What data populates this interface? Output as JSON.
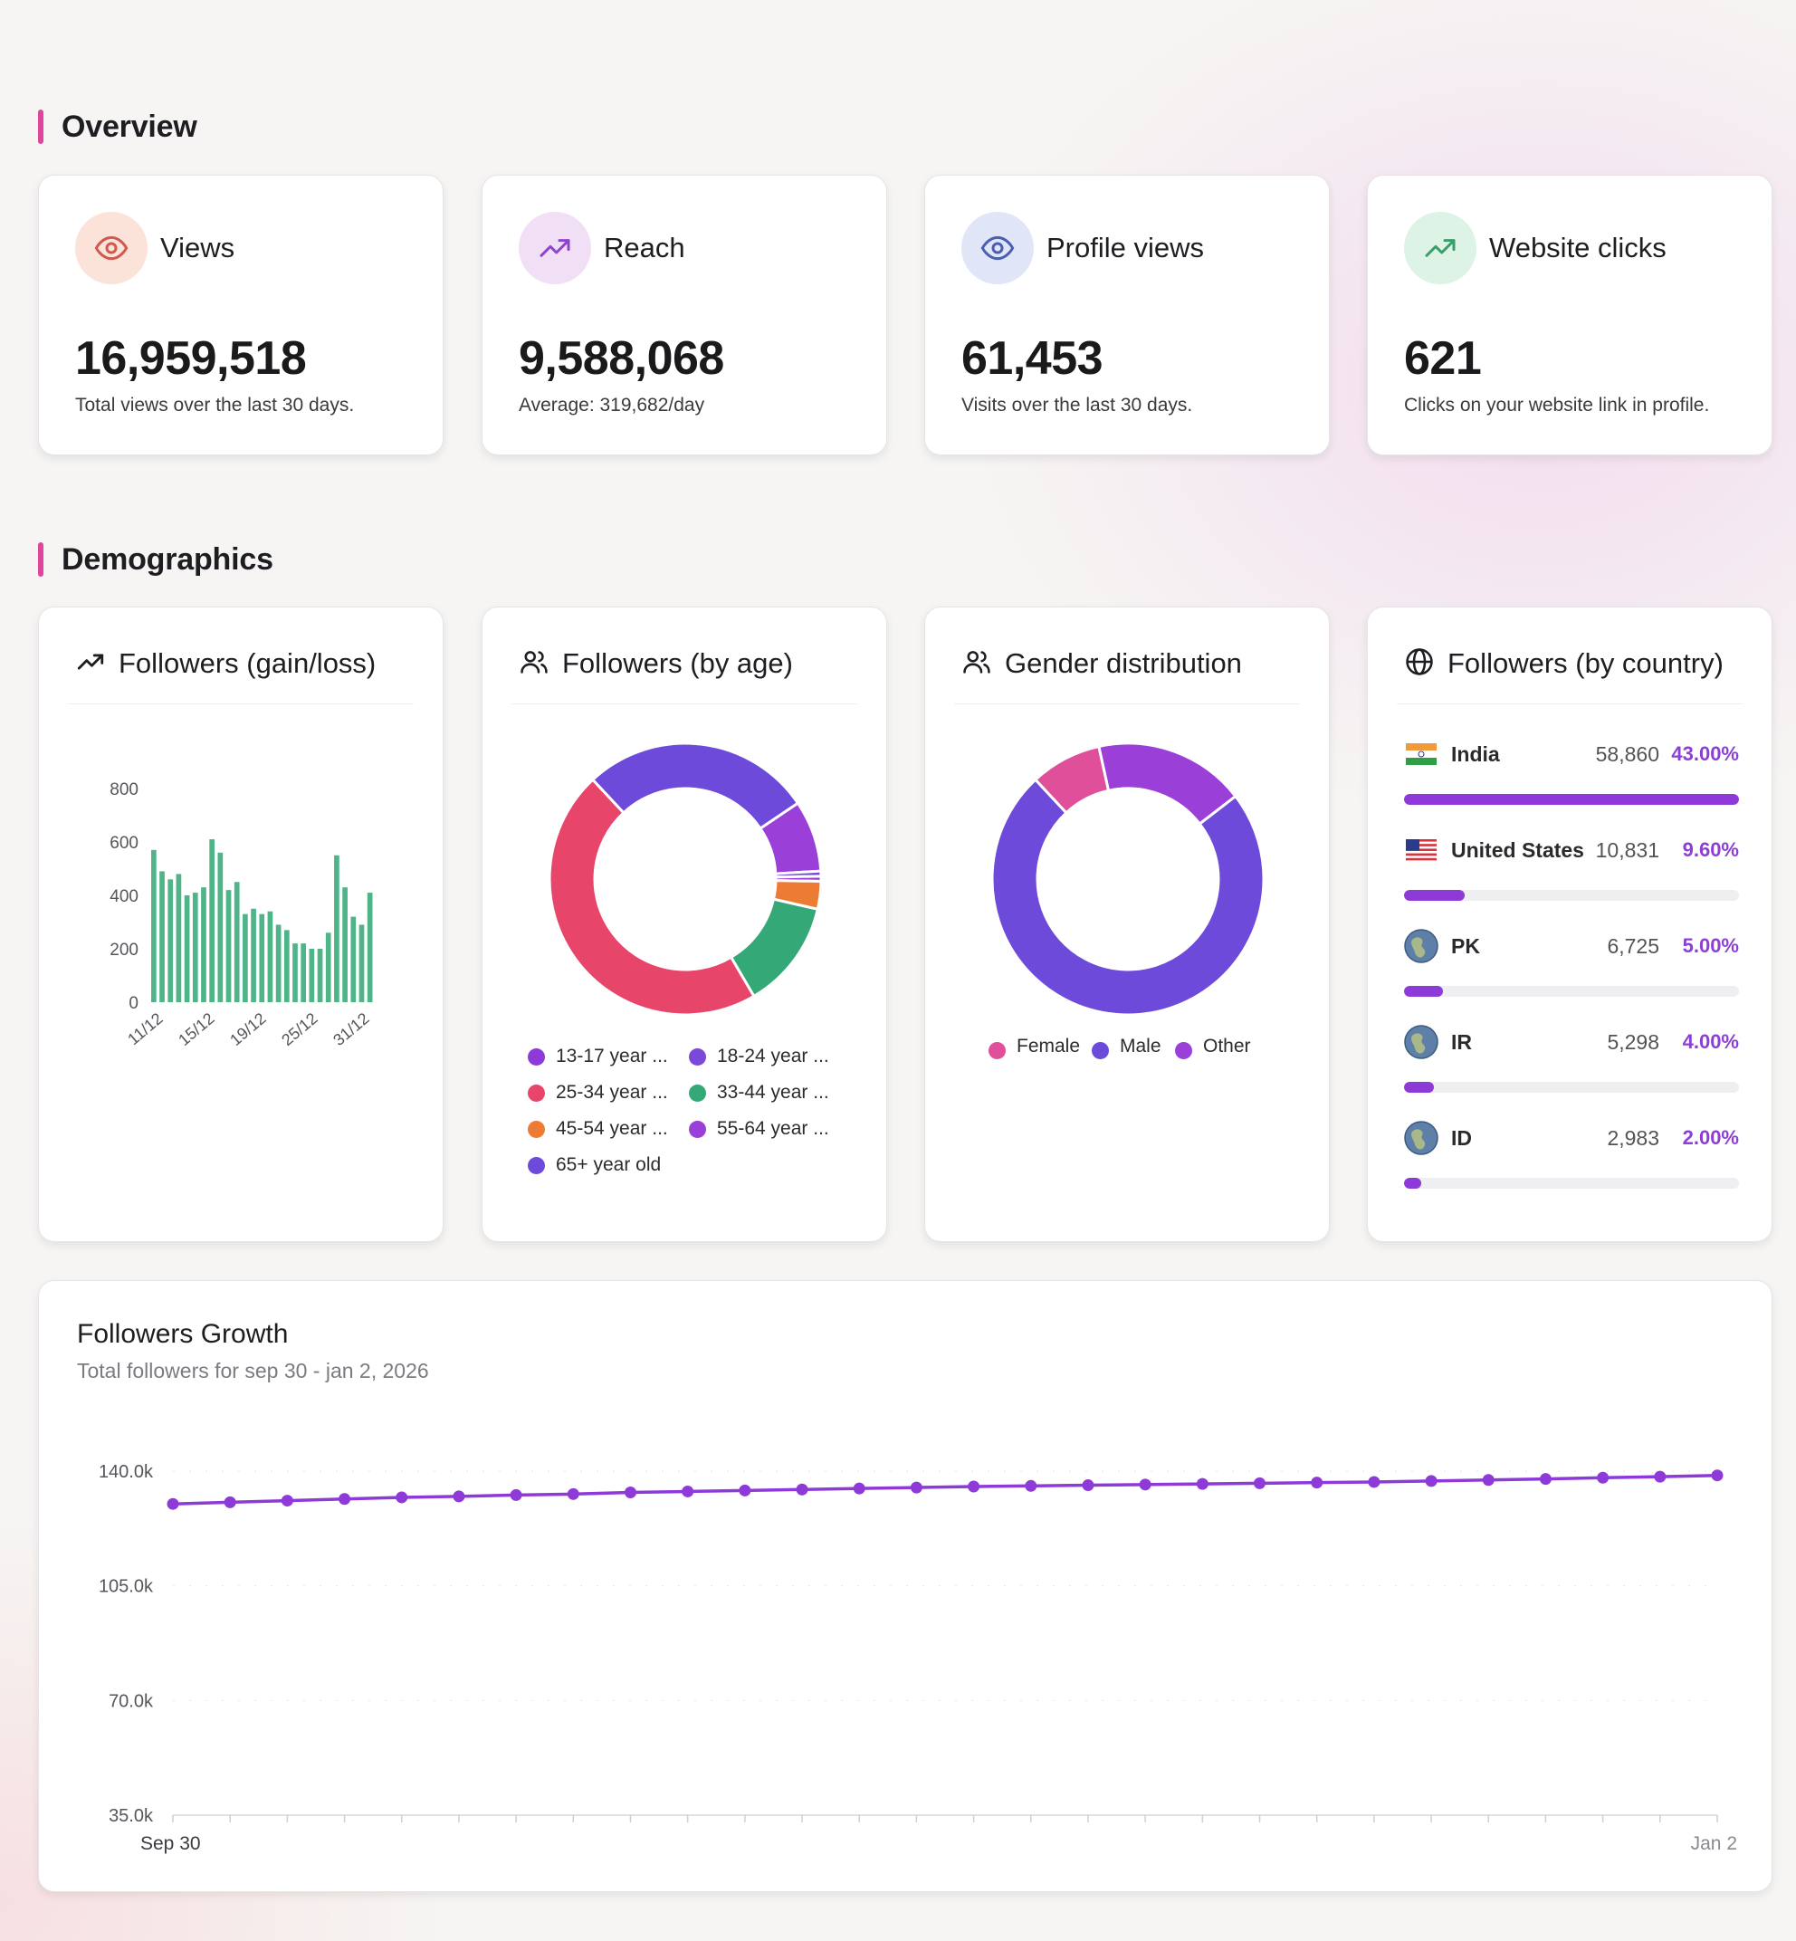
{
  "overview": {
    "title": "Overview",
    "cards": [
      {
        "label": "Views",
        "value": "16,959,518",
        "sub": "Total views over the last 30 days.",
        "icon": "eye-icon",
        "icon_bg": "#fbe3da",
        "icon_color": "#d0594f"
      },
      {
        "label": "Reach",
        "value": "9,588,068",
        "sub": "Average: 319,682/day",
        "icon": "trending-up-icon",
        "icon_bg": "#f1e0f5",
        "icon_color": "#8f45c9"
      },
      {
        "label": "Profile views",
        "value": "61,453",
        "sub": "Visits over the last 30 days.",
        "icon": "eye-icon",
        "icon_bg": "#e0e6f7",
        "icon_color": "#4b5fb0"
      },
      {
        "label": "Website clicks",
        "value": "621",
        "sub": "Clicks on your website link in profile.",
        "icon": "trending-up-icon",
        "icon_bg": "#dcf3e6",
        "icon_color": "#3a9e6b"
      }
    ]
  },
  "demographics": {
    "title": "Demographics",
    "gain_loss": {
      "title": "Followers (gain/loss)",
      "icon": "trending-up-icon"
    },
    "by_age": {
      "title": "Followers (by age)",
      "icon": "users-icon",
      "legend": [
        {
          "label": "13-17 year ...",
          "color": "#8e3ad8"
        },
        {
          "label": "18-24 year ...",
          "color": "#7a49d8"
        },
        {
          "label": "25-34 year ...",
          "color": "#e8456b"
        },
        {
          "label": "33-44 year ...",
          "color": "#35a878"
        },
        {
          "label": "45-54 year ...",
          "color": "#ec7c34"
        },
        {
          "label": "55-64 year ...",
          "color": "#9b3fd9"
        },
        {
          "label": "65+ year old",
          "color": "#6d4ad9"
        }
      ]
    },
    "gender": {
      "title": "Gender distribution",
      "icon": "users-icon",
      "legend": [
        {
          "label": "Female",
          "color": "#e0509a"
        },
        {
          "label": "Male",
          "color": "#6d4ad9"
        },
        {
          "label": "Other",
          "color": "#9b3fd9"
        }
      ]
    },
    "by_country": {
      "title": "Followers (by country)",
      "icon": "globe-icon",
      "rows": [
        {
          "name": "India",
          "value": "58,860",
          "pct": "43.00%",
          "share": 1.0,
          "flag": "flag-india-icon"
        },
        {
          "name": "United States",
          "value": "10,831",
          "pct": "9.60%",
          "share": 0.18,
          "flag": "flag-us-icon"
        },
        {
          "name": "PK",
          "value": "6,725",
          "pct": "5.00%",
          "share": 0.115,
          "flag": "globe-icon"
        },
        {
          "name": "IR",
          "value": "5,298",
          "pct": "4.00%",
          "share": 0.09,
          "flag": "globe-icon"
        },
        {
          "name": "ID",
          "value": "2,983",
          "pct": "2.00%",
          "share": 0.05,
          "flag": "globe-icon"
        }
      ]
    }
  },
  "growth": {
    "title": "Followers Growth",
    "subtitle": "Total followers for sep 30 - jan 2, 2026"
  },
  "chart_data": [
    {
      "type": "bar",
      "title": "Followers (gain/loss)",
      "color": "#4fb589",
      "ylim": [
        0,
        800
      ],
      "yticks": [
        "0",
        "200",
        "400",
        "600",
        "800"
      ],
      "xticks": [
        "11/12",
        "15/12",
        "19/12",
        "25/12",
        "31/12"
      ],
      "values": [
        570,
        490,
        460,
        480,
        400,
        410,
        430,
        610,
        560,
        420,
        450,
        330,
        350,
        330,
        340,
        290,
        270,
        220,
        220,
        200,
        200,
        260,
        550,
        430,
        320,
        290,
        410
      ]
    },
    {
      "type": "pie",
      "title": "Followers (by age)",
      "slices": [
        {
          "label": "18-24 year ...",
          "value": 27.5,
          "color": "#6d4ad9"
        },
        {
          "label": "13-17 year ...",
          "value": 8.5,
          "color": "#9b3fd9"
        },
        {
          "label": "65+ year old",
          "value": 0.6,
          "color": "#6d4ad9"
        },
        {
          "label": "55-64 year ...",
          "value": 0.6,
          "color": "#9b3fd9"
        },
        {
          "label": "45-54 year ...",
          "value": 3.3,
          "color": "#ec7c34"
        },
        {
          "label": "33-44 year ...",
          "value": 13.0,
          "color": "#35a878"
        },
        {
          "label": "25-34 year ...",
          "value": 46.5,
          "color": "#e8456b"
        }
      ]
    },
    {
      "type": "pie",
      "title": "Gender distribution",
      "slices": [
        {
          "label": "Female",
          "value": 8.5,
          "color": "#e0509a"
        },
        {
          "label": "Other",
          "value": 18.0,
          "color": "#9b3fd9"
        },
        {
          "label": "Male",
          "value": 73.5,
          "color": "#6d4ad9"
        }
      ]
    },
    {
      "type": "line",
      "title": "Followers Growth",
      "color": "#8e3ad8",
      "ylim": [
        35000,
        140000
      ],
      "yticks": [
        "35.0k",
        "70.0k",
        "105.0k",
        "140.0k"
      ],
      "x_start": "Sep 30",
      "x_end": "Jan 2",
      "values": [
        130000,
        130500,
        131000,
        131500,
        132000,
        132300,
        132700,
        133000,
        133500,
        133800,
        134100,
        134400,
        134700,
        135000,
        135300,
        135500,
        135700,
        135900,
        136100,
        136300,
        136500,
        136700,
        137000,
        137300,
        137600,
        138000,
        138300,
        138700
      ]
    }
  ]
}
